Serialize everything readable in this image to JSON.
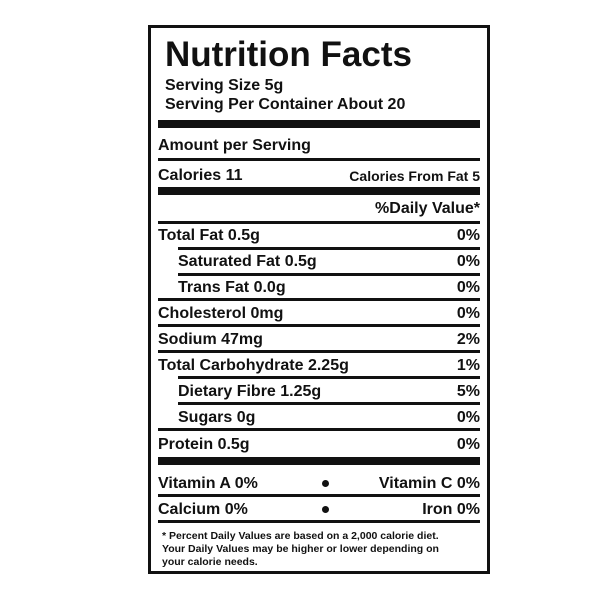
{
  "header": {
    "title": "Nutrition Facts",
    "serving_size": "Serving Size 5g",
    "servings_per_container": "Serving Per Container About 20"
  },
  "amount_per_serving": "Amount per Serving",
  "calories": "Calories 11",
  "calories_from_fat": "Calories From Fat 5",
  "daily_value_header": "%Daily Value*",
  "nutrients": [
    {
      "label": "Total Fat 0.5g",
      "dv": "0%"
    },
    {
      "label": "Saturated Fat 0.5g",
      "dv": "0%"
    },
    {
      "label": "Trans Fat 0.0g",
      "dv": "0%"
    },
    {
      "label": "Cholesterol 0mg",
      "dv": "0%"
    },
    {
      "label": "Sodium 47mg",
      "dv": "2%"
    },
    {
      "label": "Total Carbohydrate 2.25g",
      "dv": "1%"
    },
    {
      "label": "Dietary Fibre 1.25g",
      "dv": "5%"
    },
    {
      "label": "Sugars 0g",
      "dv": "0%"
    },
    {
      "label": "Protein 0.5g",
      "dv": "0%"
    }
  ],
  "vitamins": [
    [
      "Vitamin A 0%",
      "Vitamin C 0%"
    ],
    [
      "Calcium 0%",
      "Iron 0%"
    ]
  ],
  "footnote": [
    "* Percent Daily Values are based on a 2,000 calorie diet.",
    "Your Daily Values may be higher or lower depending on",
    "your calorie needs."
  ]
}
